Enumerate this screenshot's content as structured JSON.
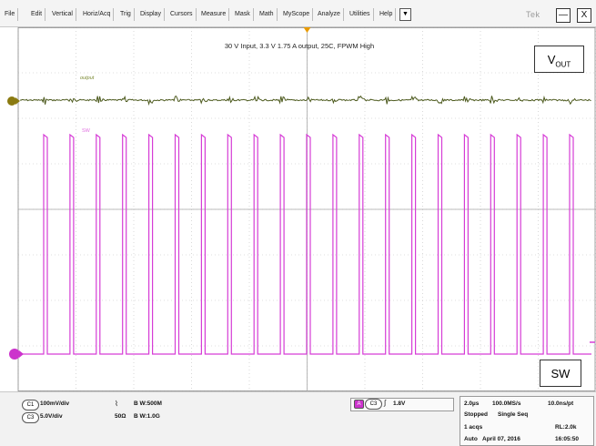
{
  "menubar": {
    "items": [
      "File",
      "Edit",
      "Vertical",
      "Horiz/Acq",
      "Trig",
      "Display",
      "Cursors",
      "Measure",
      "Mask",
      "Math",
      "MyScope",
      "Analyze",
      "Utilities",
      "Help"
    ],
    "dropdown_glyph": "▼",
    "brand": "Tek",
    "minimize": "—",
    "close": "X"
  },
  "scope": {
    "title": "30 V Input, 3.3 V 1.75 A output, 25C, FPWM  High",
    "ch1_label": "output",
    "ch3_label": "SW",
    "vout_main": "V",
    "vout_sub": "OUT",
    "sw_callout": "SW",
    "colors": {
      "ch1": "#4d5a1e",
      "ch3": "#d63cd6",
      "grid": "#c0c0c0",
      "center": "#a8a8a8",
      "trigger": "#e89a00"
    }
  },
  "bottom": {
    "ch1_badge": "C1",
    "ch1_scale": "100mV/div",
    "ch1_coupling": "⌇",
    "ch1_bw": "B W:500M",
    "ch3_badge": "C3",
    "ch3_scale": "5.0V/div",
    "ch3_imp": "50Ω",
    "ch3_bw": "B W:1.0G",
    "trig_badge": "A",
    "trig_src": "C3",
    "trig_glyph": "∫",
    "trig_level": "1.8V",
    "timebase": "2.0µs",
    "sample_rate": "100.0MS/s",
    "per_pt": "10.0ns/pt",
    "state": "Stopped",
    "mode": "Single Seq",
    "acqs": "1 acqs",
    "rl": "RL:2.0k",
    "trig_mode": "Auto",
    "date": "April 07, 2016",
    "time": "16:05:50"
  }
}
